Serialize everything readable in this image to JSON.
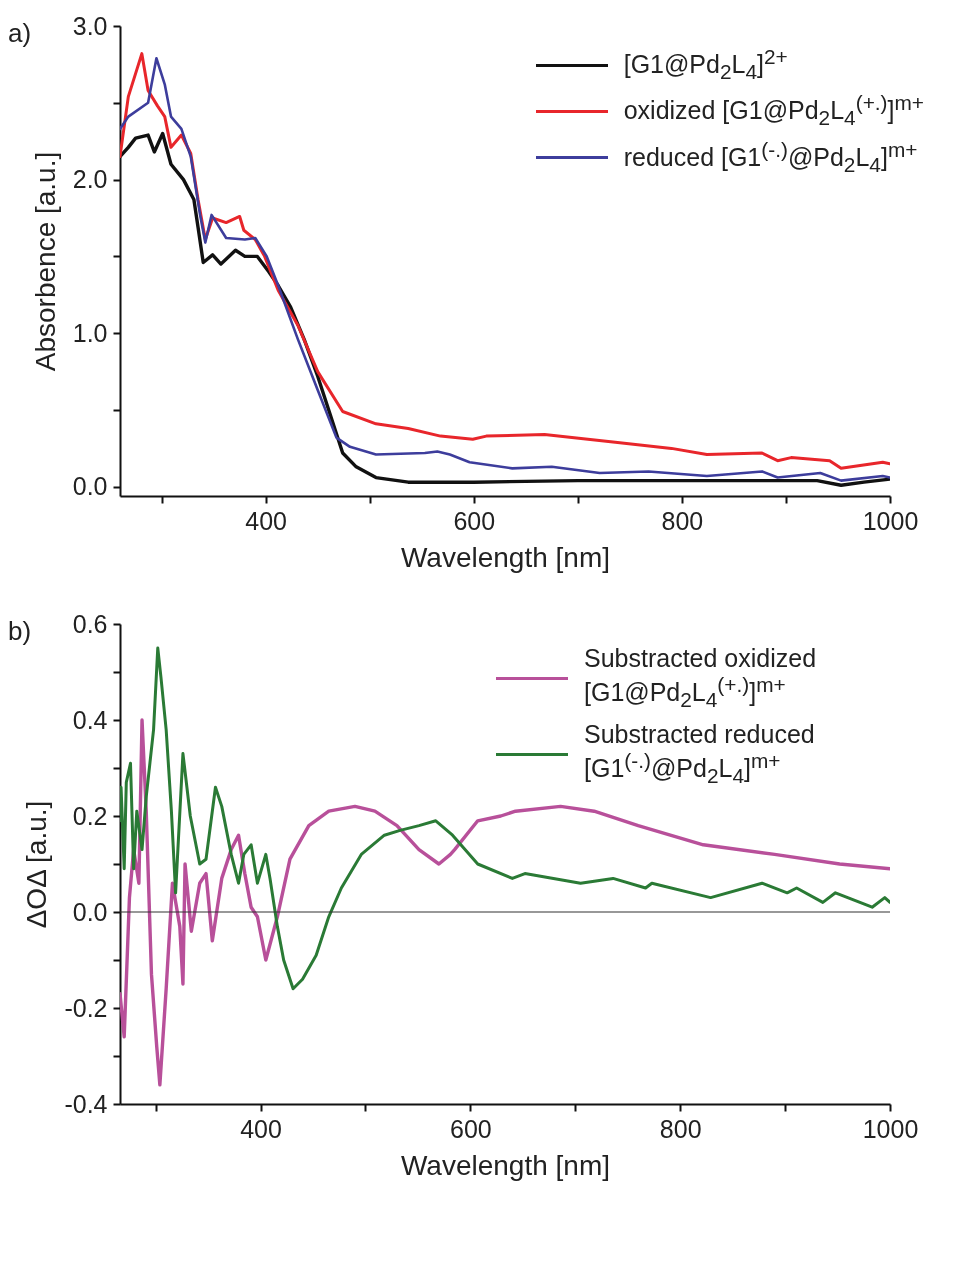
{
  "chart_data": [
    {
      "type": "line",
      "xlabel": "Wavelength [nm]",
      "ylabel": "Absorbence [a.u.]",
      "annotations": [
        "a)"
      ],
      "legend": "top right",
      "xlim": [
        260,
        1000
      ],
      "ylim": [
        -0.06,
        3.0
      ],
      "xticks": [
        {
          "value": 300,
          "label": null
        },
        400,
        {
          "value": 500,
          "label": null
        },
        600,
        {
          "value": 700,
          "label": null
        },
        800,
        {
          "value": 900,
          "label": null
        },
        1000
      ],
      "yticks": [
        {
          "value": 0,
          "label": "0.0"
        },
        {
          "value": 0.5,
          "label": null
        },
        {
          "value": 1,
          "label": "1.0"
        },
        {
          "value": 1.5,
          "label": null
        },
        {
          "value": 2,
          "label": "2.0"
        },
        {
          "value": 2.5,
          "label": null
        },
        {
          "value": 3,
          "label": "3.0"
        }
      ],
      "series": [
        {
          "name": "[G1@Pd$_{2}$L$_{4}$]$^{2+}$",
          "color": "#111111",
          "x": [
            260,
            268,
            275,
            287,
            293,
            301,
            309,
            321,
            331,
            335,
            340,
            349,
            357,
            371,
            380,
            392,
            403,
            412,
            424,
            437,
            450,
            462,
            474,
            487,
            506,
            537,
            600,
            700,
            800,
            880,
            930,
            953,
            975,
            1000
          ],
          "values": [
            2.15,
            2.21,
            2.27,
            2.29,
            2.18,
            2.3,
            2.1,
            2.0,
            1.87,
            1.69,
            1.46,
            1.51,
            1.45,
            1.54,
            1.5,
            1.5,
            1.4,
            1.31,
            1.17,
            0.96,
            0.72,
            0.47,
            0.22,
            0.13,
            0.06,
            0.03,
            0.03,
            0.04,
            0.04,
            0.04,
            0.04,
            0.01,
            0.03,
            0.05
          ]
        },
        {
          "name": "oxidized [G1@Pd$_{2}$L$_{4}$$^{(+.)}$]$^{m+}$",
          "color": "#e8262b",
          "x": [
            260,
            268,
            281,
            287,
            296,
            303,
            309,
            319,
            328,
            335,
            342,
            349,
            362,
            375,
            379,
            390,
            399,
            412,
            431,
            450,
            474,
            506,
            537,
            568,
            599,
            612,
            668,
            736,
            790,
            824,
            877,
            892,
            905,
            942,
            953,
            993,
            1000
          ],
          "values": [
            2.15,
            2.54,
            2.82,
            2.58,
            2.48,
            2.41,
            2.21,
            2.29,
            2.17,
            1.87,
            1.61,
            1.75,
            1.72,
            1.76,
            1.67,
            1.61,
            1.5,
            1.28,
            1.05,
            0.75,
            0.49,
            0.41,
            0.38,
            0.33,
            0.31,
            0.33,
            0.34,
            0.29,
            0.25,
            0.21,
            0.22,
            0.17,
            0.19,
            0.17,
            0.12,
            0.16,
            0.15
          ]
        },
        {
          "name": "reduced [G1$^{(-.)}$@Pd$_{2}$L$_{4}$]$^{m+}$",
          "color": "#3d3d9c",
          "x": [
            260,
            268,
            287,
            295,
            303,
            309,
            319,
            328,
            337,
            342,
            348,
            362,
            380,
            390,
            401,
            412,
            431,
            450,
            468,
            481,
            506,
            553,
            565,
            577,
            596,
            637,
            675,
            721,
            768,
            824,
            877,
            892,
            933,
            953,
            993,
            1000
          ],
          "values": [
            2.33,
            2.41,
            2.5,
            2.79,
            2.62,
            2.41,
            2.33,
            2.15,
            1.77,
            1.59,
            1.77,
            1.62,
            1.61,
            1.62,
            1.5,
            1.31,
            0.96,
            0.63,
            0.32,
            0.26,
            0.21,
            0.22,
            0.23,
            0.21,
            0.16,
            0.12,
            0.13,
            0.09,
            0.1,
            0.07,
            0.1,
            0.06,
            0.09,
            0.04,
            0.07,
            0.06
          ]
        }
      ]
    },
    {
      "type": "line",
      "xlabel": "Wavelength [nm]",
      "ylabel": "ΔOΔ [a.u.]",
      "annotations": [
        "b)"
      ],
      "legend": "top right",
      "xlim": [
        266,
        1000
      ],
      "ylim": [
        -0.4,
        0.6
      ],
      "xticks": [
        {
          "value": 300,
          "label": null
        },
        400,
        {
          "value": 500,
          "label": null
        },
        600,
        {
          "value": 700,
          "label": null
        },
        800,
        {
          "value": 900,
          "label": null
        },
        1000
      ],
      "yticks": [
        -0.4,
        {
          "value": -0.3,
          "label": null
        },
        -0.2,
        {
          "value": -0.1,
          "label": null
        },
        {
          "value": 0,
          "label": "0.0"
        },
        {
          "value": 0.1,
          "label": null
        },
        0.2,
        {
          "value": 0.3,
          "label": null
        },
        0.4,
        {
          "value": 0.5,
          "label": null
        },
        0.6
      ],
      "ref_lines": [
        {
          "axis": "y",
          "value": 0,
          "color": "#333333"
        }
      ],
      "series": [
        {
          "name": "Substracted oxidized [G1@Pd$_{2}$L$_{4}$$^{(+.)}$]$^{m+}$",
          "color": "#b8509a",
          "x": [
            266,
            270,
            275,
            279,
            284,
            287,
            291,
            296,
            301,
            304,
            310,
            316,
            323,
            326,
            328,
            334,
            342,
            348,
            354,
            363,
            372,
            379,
            385,
            391,
            397,
            405,
            416,
            428,
            446,
            465,
            490,
            509,
            530,
            551,
            570,
            581,
            585,
            607,
            629,
            643,
            686,
            718,
            760,
            822,
            890,
            952,
            1000
          ],
          "values": [
            -0.17,
            -0.26,
            0.03,
            0.13,
            0.06,
            0.4,
            0.21,
            -0.13,
            -0.28,
            -0.36,
            -0.16,
            0.06,
            -0.03,
            -0.15,
            0.1,
            -0.04,
            0.06,
            0.08,
            -0.06,
            0.07,
            0.13,
            0.16,
            0.08,
            0.01,
            -0.01,
            -0.1,
            -0.01,
            0.11,
            0.18,
            0.21,
            0.22,
            0.21,
            0.18,
            0.13,
            0.1,
            0.12,
            0.13,
            0.19,
            0.2,
            0.21,
            0.22,
            0.21,
            0.18,
            0.14,
            0.12,
            0.1,
            0.09
          ]
        },
        {
          "name": "Substracted reduced [G1$^{(-.)}$@Pd$_{2}$L$_{4}$]$^{m+}$",
          "color": "#2a7a35",
          "x": [
            266,
            267,
            270,
            272,
            276,
            279,
            282,
            287,
            291,
            298,
            302,
            305,
            310,
            315,
            319,
            326,
            333,
            342,
            348,
            357,
            363,
            372,
            379,
            384,
            391,
            397,
            405,
            409,
            416,
            422,
            431,
            440,
            453,
            465,
            477,
            496,
            518,
            533,
            551,
            567,
            583,
            607,
            640,
            652,
            705,
            736,
            767,
            773,
            829,
            878,
            902,
            911,
            936,
            948,
            983,
            995,
            1000
          ],
          "values": [
            0.19,
            0.26,
            0.09,
            0.27,
            0.31,
            0.09,
            0.21,
            0.13,
            0.24,
            0.38,
            0.55,
            0.49,
            0.38,
            0.21,
            0.04,
            0.33,
            0.2,
            0.1,
            0.11,
            0.26,
            0.22,
            0.12,
            0.06,
            0.12,
            0.14,
            0.06,
            0.12,
            0.07,
            -0.03,
            -0.1,
            -0.16,
            -0.14,
            -0.09,
            -0.01,
            0.05,
            0.12,
            0.16,
            0.17,
            0.18,
            0.19,
            0.16,
            0.1,
            0.07,
            0.08,
            0.06,
            0.07,
            0.05,
            0.06,
            0.03,
            0.06,
            0.04,
            0.05,
            0.02,
            0.04,
            0.01,
            0.03,
            0.02
          ]
        }
      ]
    }
  ]
}
